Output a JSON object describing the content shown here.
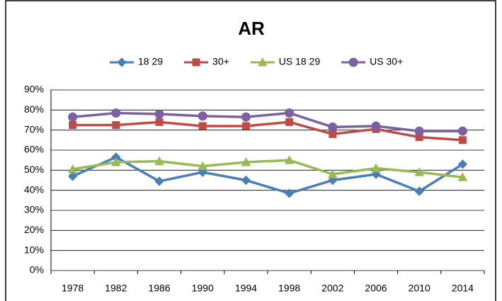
{
  "chart_data": {
    "type": "line",
    "title": "AR",
    "categories": [
      "1978",
      "1982",
      "1986",
      "1990",
      "1994",
      "1998",
      "2002",
      "2006",
      "2010",
      "2014"
    ],
    "series": [
      {
        "name": "18 29",
        "color": "#4a7ebb",
        "marker": "diamond",
        "values": [
          47,
          56.5,
          44.5,
          49,
          45,
          38.5,
          45,
          48,
          39.5,
          53
        ]
      },
      {
        "name": "30+",
        "color": "#be4b48",
        "marker": "square",
        "values": [
          72.5,
          72.5,
          74,
          72,
          72,
          74,
          68,
          70.5,
          66.5,
          65
        ]
      },
      {
        "name": "US 18 29",
        "color": "#98b954",
        "marker": "triangle",
        "values": [
          50.5,
          54,
          54.5,
          52,
          54,
          55,
          48,
          51,
          49,
          46.5
        ]
      },
      {
        "name": "US 30+",
        "color": "#7d60a0",
        "marker": "circle",
        "values": [
          76.5,
          78.5,
          78,
          77,
          76.5,
          78.5,
          71.5,
          72,
          69.5,
          69.5
        ]
      }
    ],
    "ylim": [
      0,
      90
    ],
    "yticks": [
      {
        "value": 0,
        "label": "0%"
      },
      {
        "value": 10,
        "label": "10%"
      },
      {
        "value": 20,
        "label": "20%"
      },
      {
        "value": 30,
        "label": "30%"
      },
      {
        "value": 40,
        "label": "40%"
      },
      {
        "value": 50,
        "label": "50%"
      },
      {
        "value": 60,
        "label": "60%"
      },
      {
        "value": 70,
        "label": "70%"
      },
      {
        "value": 80,
        "label": "80%"
      },
      {
        "value": 90,
        "label": "90%"
      }
    ],
    "grid": true,
    "legend": "top"
  }
}
